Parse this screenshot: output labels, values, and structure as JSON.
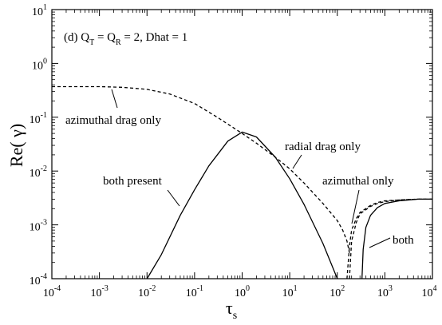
{
  "chart_data": {
    "type": "line",
    "panel_label": "(d) Q",
    "panel_label_parts": {
      "prefix": "(d) Q",
      "sub1": "T",
      "eq1": " = Q",
      "sub2": "R",
      "rest": " = 2, Dhat = 1"
    },
    "xlabel": {
      "main": "τ",
      "sub": "s"
    },
    "ylabel": "Re( γ)",
    "x_scale": "log",
    "y_scale": "log",
    "xlim": [
      0.0001,
      10000
    ],
    "ylim": [
      0.0001,
      10
    ],
    "x_ticks": [
      {
        "base": "10",
        "exp": "-4",
        "value": 0.0001
      },
      {
        "base": "10",
        "exp": "-3",
        "value": 0.001
      },
      {
        "base": "10",
        "exp": "-2",
        "value": 0.01
      },
      {
        "base": "10",
        "exp": "-1",
        "value": 0.1
      },
      {
        "base": "10",
        "exp": "0",
        "value": 1
      },
      {
        "base": "10",
        "exp": "1",
        "value": 10
      },
      {
        "base": "10",
        "exp": "2",
        "value": 100
      },
      {
        "base": "10",
        "exp": "3",
        "value": 1000
      },
      {
        "base": "10",
        "exp": "4",
        "value": 10000
      }
    ],
    "y_ticks": [
      {
        "base": "10",
        "exp": "-4",
        "value": 0.0001
      },
      {
        "base": "10",
        "exp": "-3",
        "value": 0.001
      },
      {
        "base": "10",
        "exp": "-2",
        "value": 0.01
      },
      {
        "base": "10",
        "exp": "-1",
        "value": 0.1
      },
      {
        "base": "10",
        "exp": "0",
        "value": 1
      },
      {
        "base": "10",
        "exp": "1",
        "value": 10
      }
    ],
    "series": [
      {
        "style": "dashed",
        "x": [
          0.0001,
          0.001,
          0.003,
          0.01,
          0.03,
          0.1,
          0.3,
          1,
          2,
          5,
          10,
          20,
          50,
          100,
          130,
          160,
          180
        ],
        "y": [
          0.37,
          0.37,
          0.36,
          0.33,
          0.27,
          0.18,
          0.1,
          0.05,
          0.033,
          0.018,
          0.011,
          0.006,
          0.0025,
          0.0012,
          0.0008,
          0.0005,
          0.0003
        ]
      },
      {
        "style": "solid",
        "x": [
          0.01,
          0.02,
          0.05,
          0.1,
          0.2,
          0.5,
          1,
          2,
          5,
          10,
          20,
          50,
          100
        ],
        "y": [
          0.0001,
          0.00028,
          0.0015,
          0.0045,
          0.0125,
          0.036,
          0.053,
          0.043,
          0.018,
          0.0072,
          0.0024,
          0.00045,
          0.0001
        ]
      },
      {
        "style": "dashed",
        "x": [
          180,
          200,
          250,
          300,
          500,
          700,
          1000,
          2000,
          5000,
          10000
        ],
        "y": [
          0.0001,
          0.0005,
          0.0011,
          0.0016,
          0.0022,
          0.0025,
          0.0027,
          0.0029,
          0.003,
          0.003
        ]
      },
      {
        "style": "dashed",
        "x": [
          160,
          180,
          200,
          250,
          300,
          500,
          700,
          1000,
          2000,
          5000,
          10000
        ],
        "y": [
          0.0001,
          0.0004,
          0.0008,
          0.0013,
          0.0017,
          0.0023,
          0.0026,
          0.0028,
          0.0029,
          0.003,
          0.003
        ]
      },
      {
        "style": "solid",
        "x": [
          330,
          350,
          400,
          500,
          700,
          1000,
          2000,
          5000,
          10000
        ],
        "y": [
          0.0001,
          0.00035,
          0.0009,
          0.0015,
          0.0021,
          0.0025,
          0.0028,
          0.003,
          0.003
        ]
      }
    ],
    "annotations": [
      {
        "text": "azimuthal drag only"
      },
      {
        "text": "radial drag only"
      },
      {
        "text": "both present"
      },
      {
        "text": "azimuthal only"
      },
      {
        "text": "both"
      }
    ]
  }
}
